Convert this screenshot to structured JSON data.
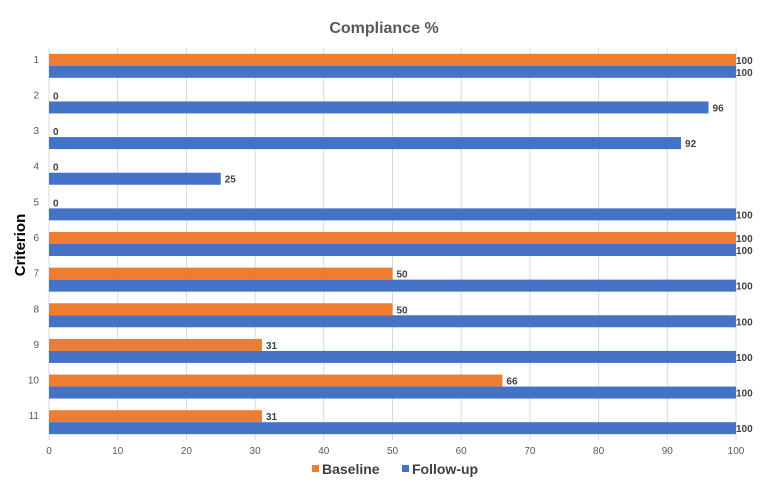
{
  "chart_data": {
    "type": "bar",
    "orientation": "horizontal",
    "title": "Compliance %",
    "xlabel": "",
    "ylabel": "Criterion",
    "xlim": [
      0,
      100
    ],
    "xticks": [
      "0",
      "10",
      "20",
      "30",
      "40",
      "50",
      "60",
      "70",
      "80",
      "90",
      "100"
    ],
    "categories": [
      "1",
      "2",
      "3",
      "4",
      "5",
      "6",
      "7",
      "8",
      "9",
      "10",
      "11"
    ],
    "series": [
      {
        "name": "Baseline",
        "color": "#ED7D31",
        "values": [
          100,
          0,
          0,
          0,
          0,
          100,
          50,
          50,
          31,
          66,
          31
        ]
      },
      {
        "name": "Follow-up",
        "color": "#4472C4",
        "values": [
          100,
          96,
          92,
          25,
          100,
          100,
          100,
          100,
          100,
          100,
          100
        ]
      }
    ],
    "grid": true,
    "legend": "bottom",
    "gridColor": "#d9d9d9"
  }
}
